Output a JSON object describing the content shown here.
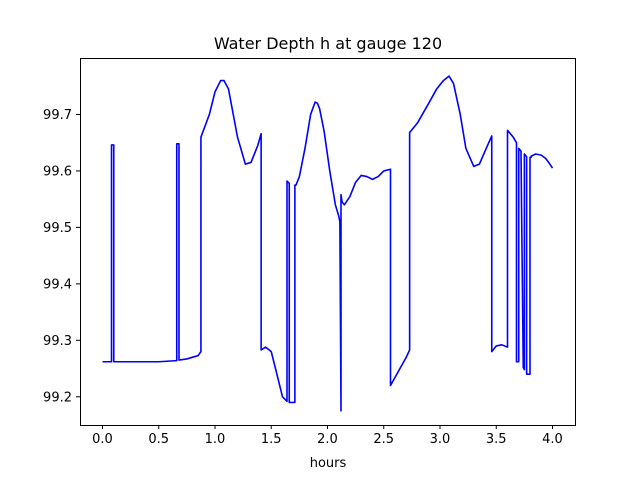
{
  "chart_data": {
    "type": "line",
    "title": "Water Depth h at gauge 120",
    "xlabel": "hours",
    "ylabel": "",
    "xlim": [
      -0.2,
      4.2
    ],
    "ylim": [
      99.15,
      99.8
    ],
    "xticks": [
      0.0,
      0.5,
      1.0,
      1.5,
      2.0,
      2.5,
      3.0,
      3.5,
      4.0
    ],
    "xtick_labels": [
      "0.0",
      "0.5",
      "1.0",
      "1.5",
      "2.0",
      "2.5",
      "3.0",
      "3.5",
      "4.0"
    ],
    "yticks": [
      99.2,
      99.3,
      99.4,
      99.5,
      99.6,
      99.7
    ],
    "ytick_labels": [
      "99.2",
      "99.3",
      "99.4",
      "99.5",
      "99.6",
      "99.7"
    ],
    "grid": false,
    "legend": "none",
    "series": [
      {
        "color": "#0000ff",
        "x": [
          0.0,
          0.08,
          0.08,
          0.1,
          0.1,
          0.12,
          0.3,
          0.5,
          0.66,
          0.66,
          0.68,
          0.68,
          0.75,
          0.85,
          0.875,
          0.875,
          0.95,
          1.0,
          1.05,
          1.08,
          1.12,
          1.2,
          1.27,
          1.32,
          1.38,
          1.41,
          1.41,
          1.45,
          1.5,
          1.55,
          1.6,
          1.64,
          1.64,
          1.66,
          1.66,
          1.68,
          1.71,
          1.71,
          1.72,
          1.72,
          1.75,
          1.8,
          1.85,
          1.89,
          1.91,
          1.93,
          1.97,
          2.02,
          2.07,
          2.1,
          2.11,
          2.12,
          2.12,
          2.13,
          2.15,
          2.2,
          2.25,
          2.3,
          2.35,
          2.4,
          2.45,
          2.5,
          2.56,
          2.56,
          2.7,
          2.73,
          2.73,
          2.8,
          2.9,
          2.97,
          3.03,
          3.08,
          3.12,
          3.18,
          3.23,
          3.3,
          3.35,
          3.4,
          3.46,
          3.46,
          3.5,
          3.55,
          3.6,
          3.6,
          3.65,
          3.68,
          3.68,
          3.7,
          3.7,
          3.72,
          3.74,
          3.75,
          3.75,
          3.77,
          3.77,
          3.8,
          3.8,
          3.81,
          3.81,
          3.85,
          3.9,
          3.94,
          3.97,
          4.0
        ],
        "y": [
          99.262,
          99.262,
          99.646,
          99.646,
          99.262,
          99.262,
          99.262,
          99.262,
          99.264,
          99.648,
          99.648,
          99.265,
          99.267,
          99.273,
          99.28,
          99.66,
          99.7,
          99.74,
          99.76,
          99.76,
          99.745,
          99.66,
          99.612,
          99.615,
          99.645,
          99.666,
          99.283,
          99.288,
          99.28,
          99.24,
          99.2,
          99.192,
          99.582,
          99.578,
          99.19,
          99.19,
          99.19,
          99.575,
          99.575,
          99.575,
          99.59,
          99.64,
          99.7,
          99.722,
          99.72,
          99.71,
          99.67,
          99.6,
          99.54,
          99.52,
          99.51,
          99.175,
          99.558,
          99.545,
          99.54,
          99.555,
          99.58,
          99.592,
          99.59,
          99.585,
          99.59,
          99.6,
          99.603,
          99.22,
          99.27,
          99.283,
          99.668,
          99.685,
          99.72,
          99.745,
          99.76,
          99.768,
          99.755,
          99.7,
          99.64,
          99.608,
          99.612,
          99.635,
          99.662,
          99.28,
          99.29,
          99.292,
          99.288,
          99.672,
          99.66,
          99.65,
          99.262,
          99.262,
          99.64,
          99.635,
          99.252,
          99.248,
          99.63,
          99.625,
          99.24,
          99.24,
          99.624,
          99.624,
          99.626,
          99.63,
          99.628,
          99.622,
          99.614,
          99.605
        ]
      }
    ]
  }
}
